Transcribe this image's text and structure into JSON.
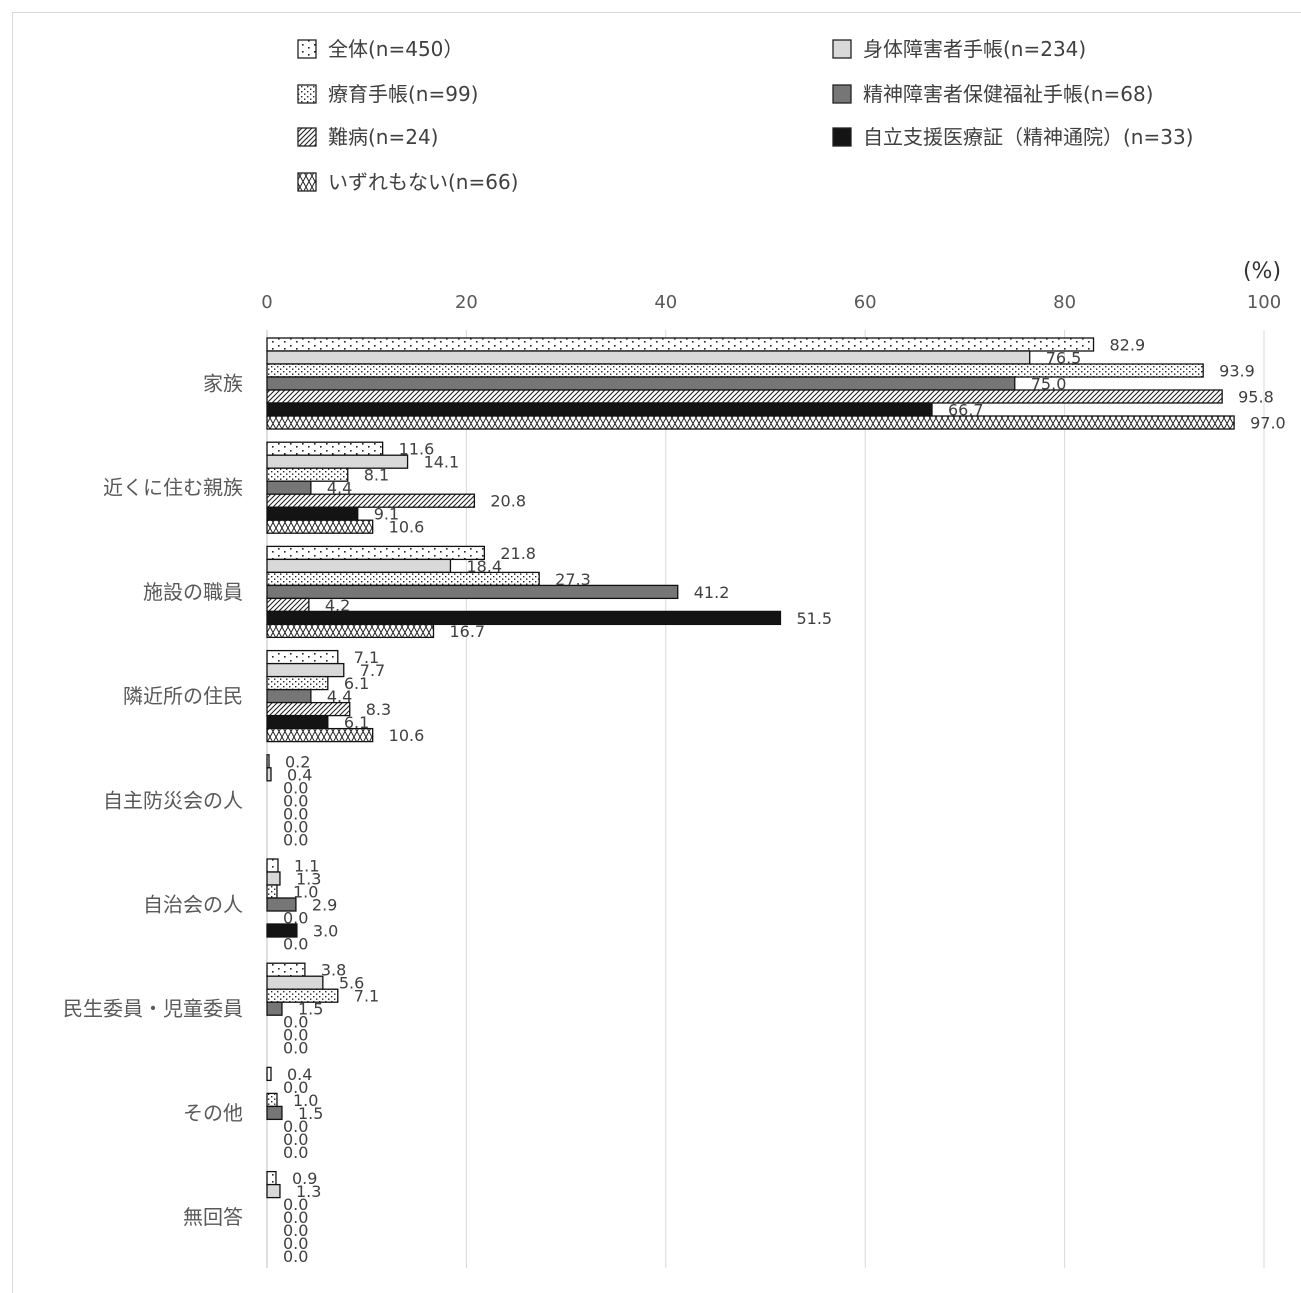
{
  "chart_data": {
    "type": "bar",
    "orientation": "horizontal",
    "unit": "(%)",
    "xlim": [
      0,
      100
    ],
    "xticks": [
      0,
      20,
      40,
      60,
      80,
      100
    ],
    "grid": true,
    "legend_position": "top",
    "categories": [
      "家族",
      "近くに住む親族",
      "施設の職員",
      "隣近所の住民",
      "自主防災会の人",
      "自治会の人",
      "民生委員・児童委員",
      "その他",
      "無回答"
    ],
    "series": [
      {
        "name": "全体(n=450）",
        "pattern": "dots-sparse",
        "values": [
          82.9,
          11.6,
          21.8,
          7.1,
          0.2,
          1.1,
          3.8,
          0.4,
          0.9
        ]
      },
      {
        "name": "身体障害者手帳(n=234)",
        "pattern": "light-gray",
        "color": "#d9d9d9",
        "values": [
          76.5,
          14.1,
          18.4,
          7.7,
          0.4,
          1.3,
          5.6,
          0.0,
          1.3
        ]
      },
      {
        "name": "療育手帳(n=99)",
        "pattern": "dots-dense",
        "values": [
          93.9,
          8.1,
          27.3,
          6.1,
          0.0,
          1.0,
          7.1,
          1.0,
          0.0
        ]
      },
      {
        "name": "精神障害者保健福祉手帳(n=68)",
        "pattern": "dark-gray",
        "color": "#767676",
        "values": [
          75.0,
          4.4,
          41.2,
          4.4,
          0.0,
          2.9,
          1.5,
          1.5,
          0.0
        ]
      },
      {
        "name": "難病(n=24)",
        "pattern": "diagonal",
        "values": [
          95.8,
          20.8,
          4.2,
          8.3,
          0.0,
          0.0,
          0.0,
          0.0,
          0.0
        ]
      },
      {
        "name": "自立支援医療証（精神通院）(n=33)",
        "pattern": "black",
        "color": "#141414",
        "values": [
          66.7,
          9.1,
          51.5,
          6.1,
          0.0,
          3.0,
          0.0,
          0.0,
          0.0
        ]
      },
      {
        "name": "いずれもない(n=66)",
        "pattern": "zigzag",
        "values": [
          97.0,
          10.6,
          16.7,
          10.6,
          0.0,
          0.0,
          0.0,
          0.0,
          0.0
        ]
      }
    ]
  }
}
